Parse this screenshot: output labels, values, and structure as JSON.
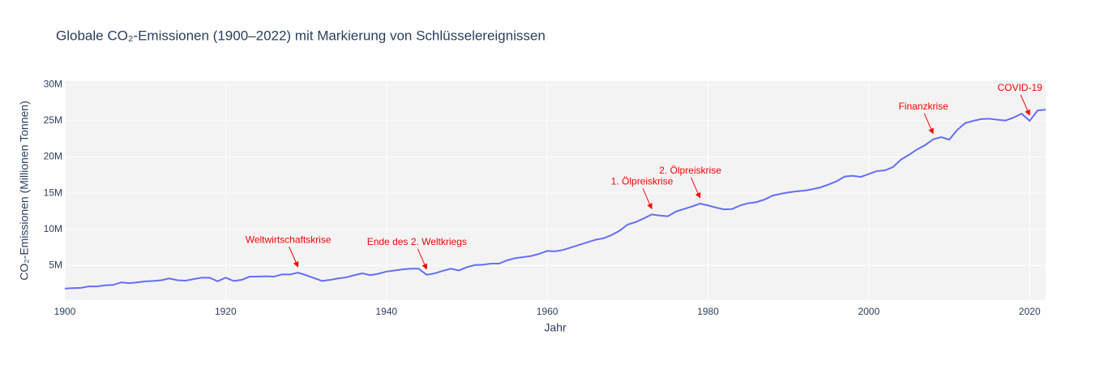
{
  "chart_data": {
    "type": "line",
    "title": "Globale CO₂-Emissionen (1900–2022) mit Markierung von Schlüsselereignissen",
    "x_label": "Jahr",
    "y_label": "CO₂-Emissionen (Millionen Tonnen)",
    "x": [
      1900,
      1901,
      1902,
      1903,
      1904,
      1905,
      1906,
      1907,
      1908,
      1909,
      1910,
      1911,
      1912,
      1913,
      1914,
      1915,
      1916,
      1917,
      1918,
      1919,
      1920,
      1921,
      1922,
      1923,
      1924,
      1925,
      1926,
      1927,
      1928,
      1929,
      1930,
      1931,
      1932,
      1933,
      1934,
      1935,
      1936,
      1937,
      1938,
      1939,
      1940,
      1941,
      1942,
      1943,
      1944,
      1945,
      1946,
      1947,
      1948,
      1949,
      1950,
      1951,
      1952,
      1953,
      1954,
      1955,
      1956,
      1957,
      1958,
      1959,
      1960,
      1961,
      1962,
      1963,
      1964,
      1965,
      1966,
      1967,
      1968,
      1969,
      1970,
      1971,
      1972,
      1973,
      1974,
      1975,
      1976,
      1977,
      1978,
      1979,
      1980,
      1981,
      1982,
      1983,
      1984,
      1985,
      1986,
      1987,
      1988,
      1989,
      1990,
      1991,
      1992,
      1993,
      1994,
      1995,
      1996,
      1997,
      1998,
      1999,
      2000,
      2001,
      2002,
      2003,
      2004,
      2005,
      2006,
      2007,
      2008,
      2009,
      2010,
      2011,
      2012,
      2013,
      2014,
      2015,
      2016,
      2017,
      2018,
      2019,
      2020,
      2021,
      2022
    ],
    "series": [
      {
        "color": "#636efa",
        "values": [
          1800000,
          1850000,
          1900000,
          2100000,
          2100000,
          2250000,
          2300000,
          2650000,
          2550000,
          2650000,
          2800000,
          2850000,
          2950000,
          3200000,
          2950000,
          2900000,
          3100000,
          3300000,
          3300000,
          2800000,
          3300000,
          2850000,
          3000000,
          3450000,
          3450000,
          3500000,
          3450000,
          3750000,
          3750000,
          4000000,
          3650000,
          3250000,
          2850000,
          3000000,
          3200000,
          3350000,
          3650000,
          3900000,
          3650000,
          3850000,
          4150000,
          4300000,
          4450000,
          4550000,
          4550000,
          3700000,
          3900000,
          4250000,
          4550000,
          4300000,
          4750000,
          5050000,
          5100000,
          5250000,
          5250000,
          5700000,
          6000000,
          6150000,
          6300000,
          6600000,
          7000000,
          6950000,
          7150000,
          7500000,
          7850000,
          8200000,
          8550000,
          8750000,
          9200000,
          9800000,
          10650000,
          11000000,
          11500000,
          12050000,
          11900000,
          11800000,
          12450000,
          12800000,
          13150000,
          13550000,
          13300000,
          13000000,
          12750000,
          12800000,
          13300000,
          13600000,
          13750000,
          14100000,
          14650000,
          14900000,
          15100000,
          15250000,
          15350000,
          15550000,
          15800000,
          16200000,
          16650000,
          17300000,
          17400000,
          17250000,
          17650000,
          18050000,
          18150000,
          18600000,
          19650000,
          20300000,
          21050000,
          21650000,
          22450000,
          22750000,
          22400000,
          23750000,
          24700000,
          25000000,
          25250000,
          25300000,
          25150000,
          25050000,
          25450000,
          26000000,
          25000000,
          26450000,
          26550000
        ]
      }
    ],
    "xlim": [
      1900,
      2022
    ],
    "xticks": [
      1900,
      1920,
      1940,
      1960,
      1980,
      2000,
      2020
    ],
    "ylim": [
      200000,
      30500000
    ],
    "yticks": [
      {
        "value": 5000000,
        "label": "5M"
      },
      {
        "value": 10000000,
        "label": "10M"
      },
      {
        "value": 15000000,
        "label": "15M"
      },
      {
        "value": 20000000,
        "label": "20M"
      },
      {
        "value": 25000000,
        "label": "25M"
      },
      {
        "value": 30000000,
        "label": "30M"
      }
    ],
    "grid": true,
    "annotations": [
      {
        "text": "Weltwirtschaftskrise",
        "x": 1929
      },
      {
        "text": "Ende des 2. Weltkriegs",
        "x": 1945
      },
      {
        "text": "1. Ölpreiskrise",
        "x": 1973
      },
      {
        "text": "2. Ölpreiskrise",
        "x": 1979
      },
      {
        "text": "Finanzkrise",
        "x": 2008
      },
      {
        "text": "COVID-19",
        "x": 2020
      }
    ],
    "annotation_color": "#ff0000"
  }
}
